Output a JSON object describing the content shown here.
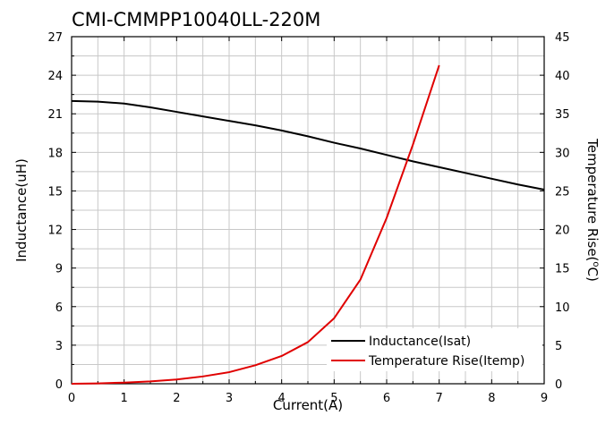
{
  "chart_data": {
    "type": "line",
    "title": "CMI-CMMPP10040LL-220M",
    "xlabel": "Current(A)",
    "ylabel": "Inductance(uH)",
    "y2label_main": "Temperature Rise(",
    "y2label_sup": "o",
    "y2label_tail": "C)",
    "xlim": [
      0,
      9
    ],
    "ylim": [
      0,
      27
    ],
    "y2lim": [
      0,
      45
    ],
    "xticks": [
      "0",
      "1",
      "2",
      "3",
      "4",
      "5",
      "6",
      "7",
      "8",
      "9"
    ],
    "yticks": [
      "0",
      "3",
      "6",
      "9",
      "12",
      "15",
      "18",
      "21",
      "24",
      "27"
    ],
    "y2ticks": [
      "0",
      "5",
      "10",
      "15",
      "20",
      "25",
      "30",
      "35",
      "40",
      "45"
    ],
    "grid": true,
    "legend_position": "bottom-right",
    "series": [
      {
        "name": "Inductance(Isat)",
        "axis": "left",
        "color": "#000000",
        "points": [
          [
            0,
            22.0
          ],
          [
            0.5,
            21.95
          ],
          [
            1,
            21.8
          ],
          [
            1.5,
            21.5
          ],
          [
            2,
            21.15
          ],
          [
            2.5,
            20.8
          ],
          [
            3,
            20.45
          ],
          [
            3.5,
            20.1
          ],
          [
            4,
            19.7
          ],
          [
            4.5,
            19.25
          ],
          [
            5,
            18.75
          ],
          [
            5.5,
            18.3
          ],
          [
            6,
            17.8
          ],
          [
            6.5,
            17.3
          ],
          [
            7,
            16.85
          ],
          [
            7.5,
            16.4
          ],
          [
            8,
            15.95
          ],
          [
            8.5,
            15.5
          ],
          [
            9,
            15.1
          ]
        ]
      },
      {
        "name": "Temperature Rise(Itemp)",
        "axis": "right",
        "color": "#e00000",
        "points": [
          [
            0,
            0
          ],
          [
            0.5,
            0.05
          ],
          [
            1,
            0.15
          ],
          [
            1.5,
            0.3
          ],
          [
            2,
            0.55
          ],
          [
            2.5,
            0.95
          ],
          [
            3,
            1.5
          ],
          [
            3.5,
            2.4
          ],
          [
            4,
            3.6
          ],
          [
            4.5,
            5.4
          ],
          [
            5,
            8.5
          ],
          [
            5.5,
            13.5
          ],
          [
            6,
            21.5
          ],
          [
            6.5,
            31.0
          ],
          [
            7,
            41.3
          ]
        ]
      }
    ]
  }
}
